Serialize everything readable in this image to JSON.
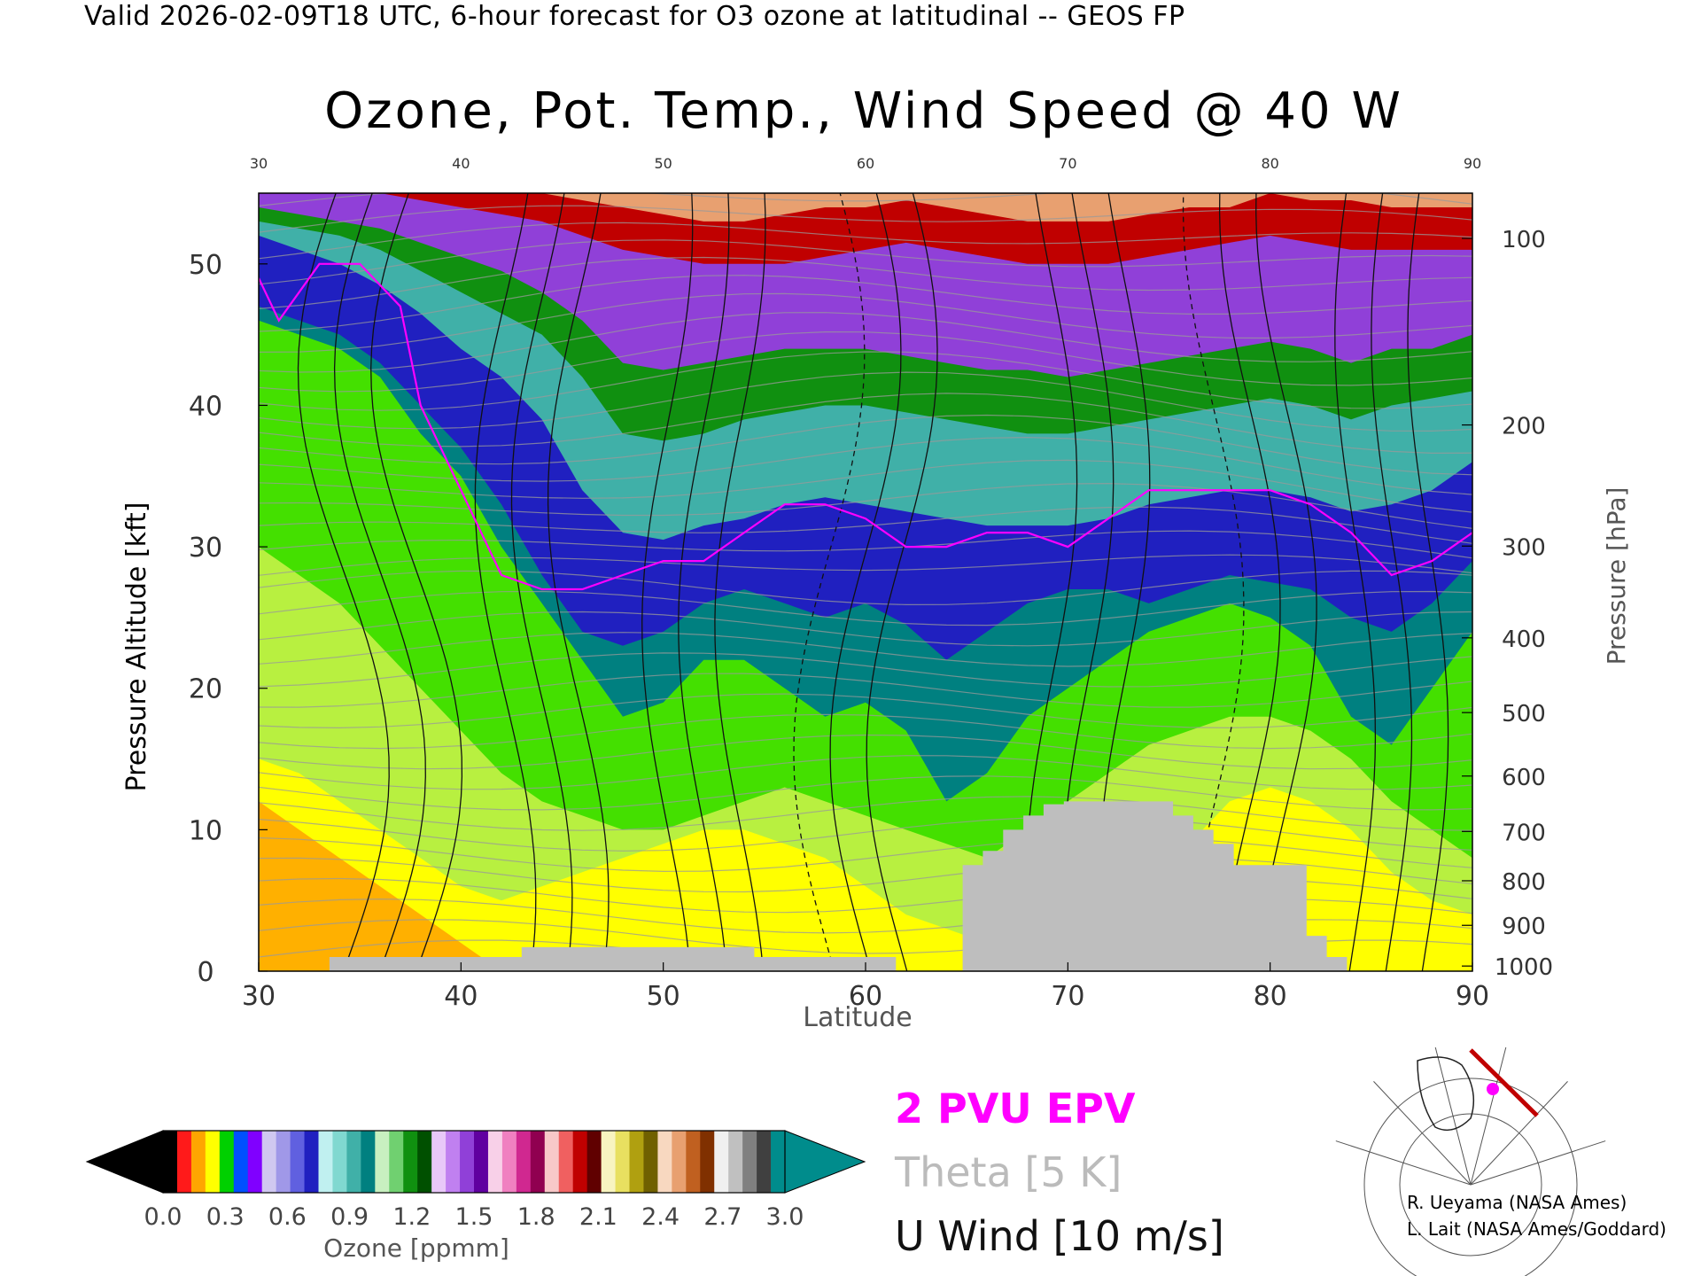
{
  "header": {
    "valid_line": "Valid 2026-02-09T18 UTC, 6-hour forecast for O3 ozone at latitudinal -- GEOS FP",
    "title": "Ozone, Pot. Temp., Wind Speed @ 40 W"
  },
  "legend": {
    "epv": "2 PVU EPV",
    "theta": "Theta [5 K]",
    "uwind": "U Wind [10 m/s]"
  },
  "credits": {
    "line1": "R. Ueyama (NASA Ames)",
    "line2": "L. Lait (NASA Ames/Goddard)"
  },
  "colorbar": {
    "label": "Ozone [ppmm]",
    "ticks": [
      "0.0",
      "0.3",
      "0.6",
      "0.9",
      "1.2",
      "1.5",
      "1.8",
      "2.1",
      "2.4",
      "2.7",
      "3.0"
    ],
    "colors": [
      "#000000",
      "#ff1a1a",
      "#ffa500",
      "#ffff00",
      "#00d000",
      "#0050ff",
      "#8000ff",
      "#d0c8f0",
      "#a098e8",
      "#6060e0",
      "#2020c0",
      "#c0f0f0",
      "#80d8d0",
      "#40b0a8",
      "#008080",
      "#c8f0c0",
      "#70d070",
      "#109010",
      "#005000",
      "#e8c8f8",
      "#c080f0",
      "#9040d8",
      "#6000a0",
      "#f8d0e8",
      "#f080c0",
      "#d02890",
      "#900050",
      "#f8c8c8",
      "#f06060",
      "#c00000",
      "#600000",
      "#f8f4c0",
      "#e8e060",
      "#b0a010",
      "#706000",
      "#f8d8c0",
      "#e8a070",
      "#c06020",
      "#803000",
      "#f0f0f0",
      "#c0c0c0",
      "#808080",
      "#404040",
      "#008c8c"
    ],
    "under_color": "#000000",
    "over_color": "#008c8c"
  },
  "chart_data": {
    "type": "heatmap",
    "title": "Ozone, Pot. Temp., Wind Speed @ 40 W",
    "xlabel": "Latitude",
    "ylabel_left": "Pressure Altitude [kft]",
    "ylabel_right": "Pressure [hPa]",
    "xlim": [
      30,
      90
    ],
    "ylim_kft": [
      0,
      55
    ],
    "x_ticks": [
      30,
      40,
      50,
      60,
      70,
      80,
      90
    ],
    "y_ticks_kft": [
      0,
      10,
      20,
      30,
      40,
      50
    ],
    "pressure_ticks_hpa": [
      100,
      200,
      300,
      400,
      500,
      600,
      700,
      800,
      900,
      1000
    ],
    "colorbar_units": "Ozone [ppmm]",
    "ozone_range_ppmm": [
      0.0,
      3.0
    ],
    "layers": [
      {
        "name": "stratosphere_high_ozone",
        "color": "#008c8c",
        "top": [
          55,
          55,
          55,
          55,
          55,
          55,
          55,
          55,
          55,
          55,
          55,
          55,
          55,
          55,
          55,
          55,
          55,
          55,
          55,
          55,
          55,
          55,
          55,
          55,
          55,
          55,
          55,
          55,
          55,
          55,
          55
        ]
      },
      {
        "name": "band_2.4_3.0",
        "color": "#e8a070",
        "top": [
          55,
          55,
          55,
          55,
          55,
          55,
          55,
          55,
          55,
          55,
          55,
          55,
          55,
          55,
          55,
          55,
          55,
          55,
          55,
          55,
          55,
          55,
          55,
          55,
          55,
          55,
          55,
          55,
          55,
          55,
          55
        ]
      },
      {
        "name": "band_1.8_2.4",
        "color": "#c00000",
        "top": [
          55,
          55,
          55,
          55,
          55,
          55,
          55,
          55,
          54.5,
          54,
          53.5,
          53,
          53,
          53.5,
          54,
          54,
          54.5,
          54,
          53.5,
          53,
          53,
          53,
          53.5,
          54,
          54,
          55,
          54.5,
          54.5,
          54,
          54,
          54
        ]
      },
      {
        "name": "band_1.2_1.8",
        "color": "#9040d8",
        "top": [
          55,
          55,
          55,
          55,
          54.5,
          54,
          53.5,
          53,
          52,
          51,
          50.5,
          50,
          50,
          50,
          50.5,
          51,
          51.5,
          51,
          50.5,
          50,
          50,
          50,
          50.5,
          51,
          51.5,
          52,
          51.5,
          51,
          51,
          51,
          51
        ]
      },
      {
        "name": "band_0.9_1.2",
        "color": "#109010",
        "top": [
          54,
          53.5,
          53,
          52.5,
          51.5,
          50.5,
          49.5,
          48,
          46,
          43,
          42.5,
          43,
          43.5,
          44,
          44,
          44,
          43.5,
          43,
          42.5,
          42.5,
          42,
          42.5,
          43,
          43.5,
          44,
          44.5,
          44,
          43,
          44,
          44,
          45
        ]
      },
      {
        "name": "band_0.6_0.9",
        "color": "#40b0a8",
        "top": [
          53,
          52.5,
          52,
          51,
          49.5,
          48,
          46.5,
          45,
          42,
          38,
          37.5,
          38,
          39,
          39.5,
          40,
          40,
          39.5,
          39,
          38.5,
          38,
          38,
          38.5,
          39,
          39.5,
          40,
          40.5,
          40,
          39,
          40,
          40.5,
          41
        ]
      },
      {
        "name": "band_0.3_0.6",
        "color": "#2020c0",
        "top": [
          52,
          51,
          50,
          48.5,
          46.5,
          44,
          42,
          39,
          34,
          31,
          30.5,
          31.5,
          32,
          33,
          33.5,
          33,
          32.5,
          32,
          31.5,
          31.5,
          31.5,
          32,
          33,
          33.5,
          34,
          34,
          33.5,
          32.5,
          33,
          34,
          36
        ]
      },
      {
        "name": "band_0.15_0.3",
        "color": "#008080",
        "top": [
          47,
          46,
          45,
          43,
          40,
          37,
          33,
          28,
          24,
          23,
          24,
          26,
          27,
          26,
          25,
          26,
          24.5,
          22,
          24,
          26,
          27,
          27,
          26,
          27,
          28,
          27.5,
          27,
          25,
          24,
          26,
          29
        ]
      },
      {
        "name": "troposphere_green",
        "color": "#44e000",
        "top": [
          46,
          45,
          44,
          42,
          38,
          35,
          30,
          26,
          22,
          18,
          19,
          22,
          22,
          20,
          18,
          19,
          17,
          12,
          14,
          18,
          20,
          22,
          24,
          25,
          26,
          25,
          23,
          18,
          16,
          20,
          24
        ]
      },
      {
        "name": "troposphere_lime",
        "color": "#b8f040",
        "top": [
          30,
          28,
          26,
          23,
          20,
          17,
          14,
          12,
          11,
          10,
          10,
          11,
          12,
          13,
          12,
          11,
          10,
          9,
          8,
          10,
          12,
          14,
          16,
          17,
          18,
          18,
          17,
          15,
          12,
          10,
          8
        ]
      },
      {
        "name": "troposphere_yellow",
        "color": "#ffff00",
        "top": [
          15,
          14,
          12,
          10,
          8,
          6,
          5,
          6,
          7,
          8,
          9,
          10,
          10,
          9,
          8,
          6,
          4,
          3,
          2,
          2,
          3,
          4,
          5,
          9,
          12,
          13,
          12,
          10,
          7,
          5,
          4
        ]
      },
      {
        "name": "surface_orange",
        "color": "#ffb000",
        "top": [
          12,
          10,
          8,
          6,
          4,
          2,
          0,
          0,
          0,
          0,
          0,
          0,
          0,
          0,
          0,
          0,
          0,
          0,
          0,
          0,
          0,
          0,
          0,
          0,
          0,
          0,
          0,
          0,
          0,
          0,
          0
        ]
      }
    ],
    "layer_lat": [
      30,
      32,
      34,
      36,
      38,
      40,
      42,
      44,
      46,
      48,
      50,
      52,
      54,
      56,
      58,
      60,
      62,
      64,
      66,
      68,
      70,
      72,
      74,
      76,
      78,
      80,
      82,
      84,
      86,
      88,
      90
    ],
    "terrain_kft": [
      [
        30,
        0
      ],
      [
        33.5,
        0
      ],
      [
        33.5,
        1
      ],
      [
        43,
        1
      ],
      [
        43,
        1.7
      ],
      [
        54.5,
        1.7
      ],
      [
        54.5,
        1
      ],
      [
        61.5,
        1
      ],
      [
        61.5,
        0
      ],
      [
        64.8,
        0
      ],
      [
        64.8,
        7.5
      ],
      [
        65.8,
        7.5
      ],
      [
        65.8,
        8.5
      ],
      [
        66.8,
        8.5
      ],
      [
        66.8,
        10
      ],
      [
        67.8,
        10
      ],
      [
        67.8,
        11
      ],
      [
        68.8,
        11
      ],
      [
        68.8,
        11.8
      ],
      [
        69.8,
        11.8
      ],
      [
        69.8,
        12
      ],
      [
        75.2,
        12
      ],
      [
        75.2,
        11
      ],
      [
        76.2,
        11
      ],
      [
        76.2,
        10
      ],
      [
        77.2,
        10
      ],
      [
        77.2,
        9
      ],
      [
        78.2,
        9
      ],
      [
        78.2,
        7.5
      ],
      [
        81.8,
        7.5
      ],
      [
        81.8,
        2.5
      ],
      [
        82.8,
        2.5
      ],
      [
        82.8,
        1
      ],
      [
        83.8,
        1
      ],
      [
        83.8,
        0
      ],
      [
        90,
        0
      ]
    ],
    "epv_2pvu_kft": [
      [
        30,
        49
      ],
      [
        31,
        46
      ],
      [
        33,
        50
      ],
      [
        35,
        50
      ],
      [
        37,
        47
      ],
      [
        38,
        40
      ],
      [
        40,
        34
      ],
      [
        42,
        28
      ],
      [
        44,
        27
      ],
      [
        46,
        27
      ],
      [
        48,
        28
      ],
      [
        50,
        29
      ],
      [
        52,
        29
      ],
      [
        54,
        31
      ],
      [
        56,
        33
      ],
      [
        58,
        33
      ],
      [
        60,
        32
      ],
      [
        62,
        30
      ],
      [
        64,
        30
      ],
      [
        66,
        31
      ],
      [
        68,
        31
      ],
      [
        70,
        30
      ],
      [
        72,
        32
      ],
      [
        74,
        34
      ],
      [
        76,
        34
      ],
      [
        78,
        34
      ],
      [
        80,
        34
      ],
      [
        82,
        33
      ],
      [
        84,
        31
      ],
      [
        86,
        28
      ],
      [
        88,
        29
      ],
      [
        90,
        31
      ]
    ],
    "tropopause_break_lat": [
      46,
      81
    ],
    "uwind_contours_m_s": [
      -10,
      0,
      10,
      20,
      30
    ]
  }
}
